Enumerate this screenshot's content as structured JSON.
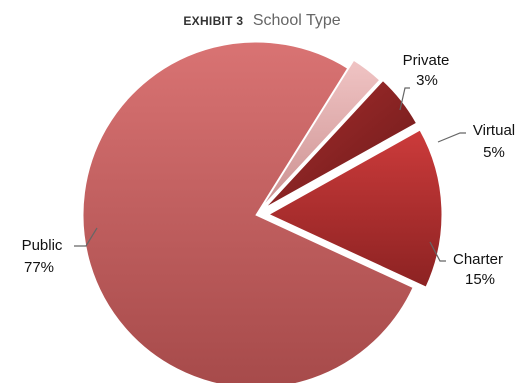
{
  "title": {
    "exhibit": "EXHIBIT 3",
    "text": "School Type"
  },
  "chart_data": {
    "type": "pie",
    "title": "EXHIBIT 3 School Type",
    "slices": [
      {
        "label": "Public",
        "percent_label": "77%",
        "value": 77,
        "exploded": false,
        "color": "#c75b5b"
      },
      {
        "label": "Private",
        "percent_label": "3%",
        "value": 3,
        "exploded": true,
        "color": "#e0a7a7"
      },
      {
        "label": "Virtual",
        "percent_label": "5%",
        "value": 5,
        "exploded": true,
        "color": "#8f2424"
      },
      {
        "label": "Charter",
        "percent_label": "15%",
        "value": 15,
        "exploded": true,
        "color": "#b23434"
      }
    ]
  }
}
